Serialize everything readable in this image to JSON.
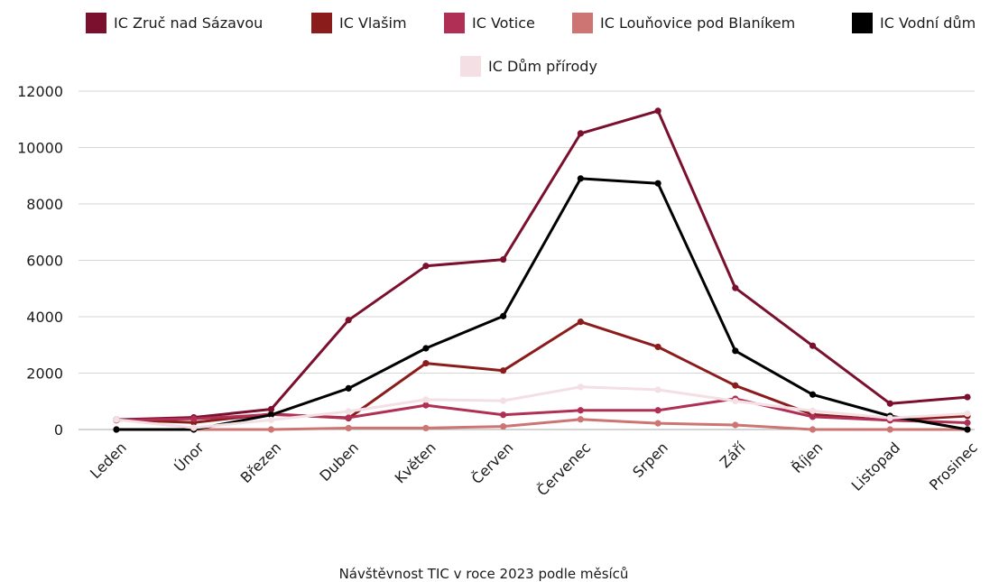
{
  "chart_data": {
    "type": "line",
    "title": "",
    "caption": "Návštěvnost TIC v roce 2023 podle měsíců",
    "xlabel": "",
    "ylabel": "",
    "categories": [
      "Leden",
      "Únor",
      "Březen",
      "Duben",
      "Květen",
      "Červen",
      "Červenec",
      "Srpen",
      "Září",
      "Říjen",
      "Listopad",
      "Prosinec"
    ],
    "ylim": [
      0,
      12000
    ],
    "yticks": [
      0,
      2000,
      4000,
      6000,
      8000,
      10000,
      12000
    ],
    "grid": "horizontal",
    "legend_position": "top",
    "series": [
      {
        "name": "IC Zruč nad Sázavou",
        "color": "#7a0f2e",
        "values": [
          350,
          430,
          720,
          3880,
          5800,
          6030,
          10500,
          11300,
          5020,
          2970,
          920,
          1150
        ]
      },
      {
        "name": "IC Vlašim",
        "color": "#8b1c1c",
        "values": [
          350,
          250,
          550,
          400,
          2350,
          2090,
          3820,
          2930,
          1560,
          530,
          330,
          480
        ]
      },
      {
        "name": "IC Votice",
        "color": "#b03055",
        "values": [
          330,
          380,
          530,
          420,
          860,
          520,
          680,
          680,
          1090,
          450,
          330,
          240
        ]
      },
      {
        "name": "IC Louňovice pod Blaníkem",
        "color": "#cd7573",
        "values": [
          0,
          0,
          0,
          50,
          50,
          110,
          360,
          220,
          160,
          0,
          0,
          0
        ]
      },
      {
        "name": "IC Vodní dům",
        "color": "#000000",
        "values": [
          0,
          0,
          520,
          1460,
          2880,
          4020,
          8900,
          8730,
          2790,
          1240,
          480,
          0
        ]
      },
      {
        "name": "IC Dům přírody",
        "color": "#f3dfe4",
        "values": [
          350,
          60,
          340,
          640,
          1060,
          1020,
          1510,
          1410,
          1010,
          660,
          410,
          560
        ]
      }
    ]
  }
}
